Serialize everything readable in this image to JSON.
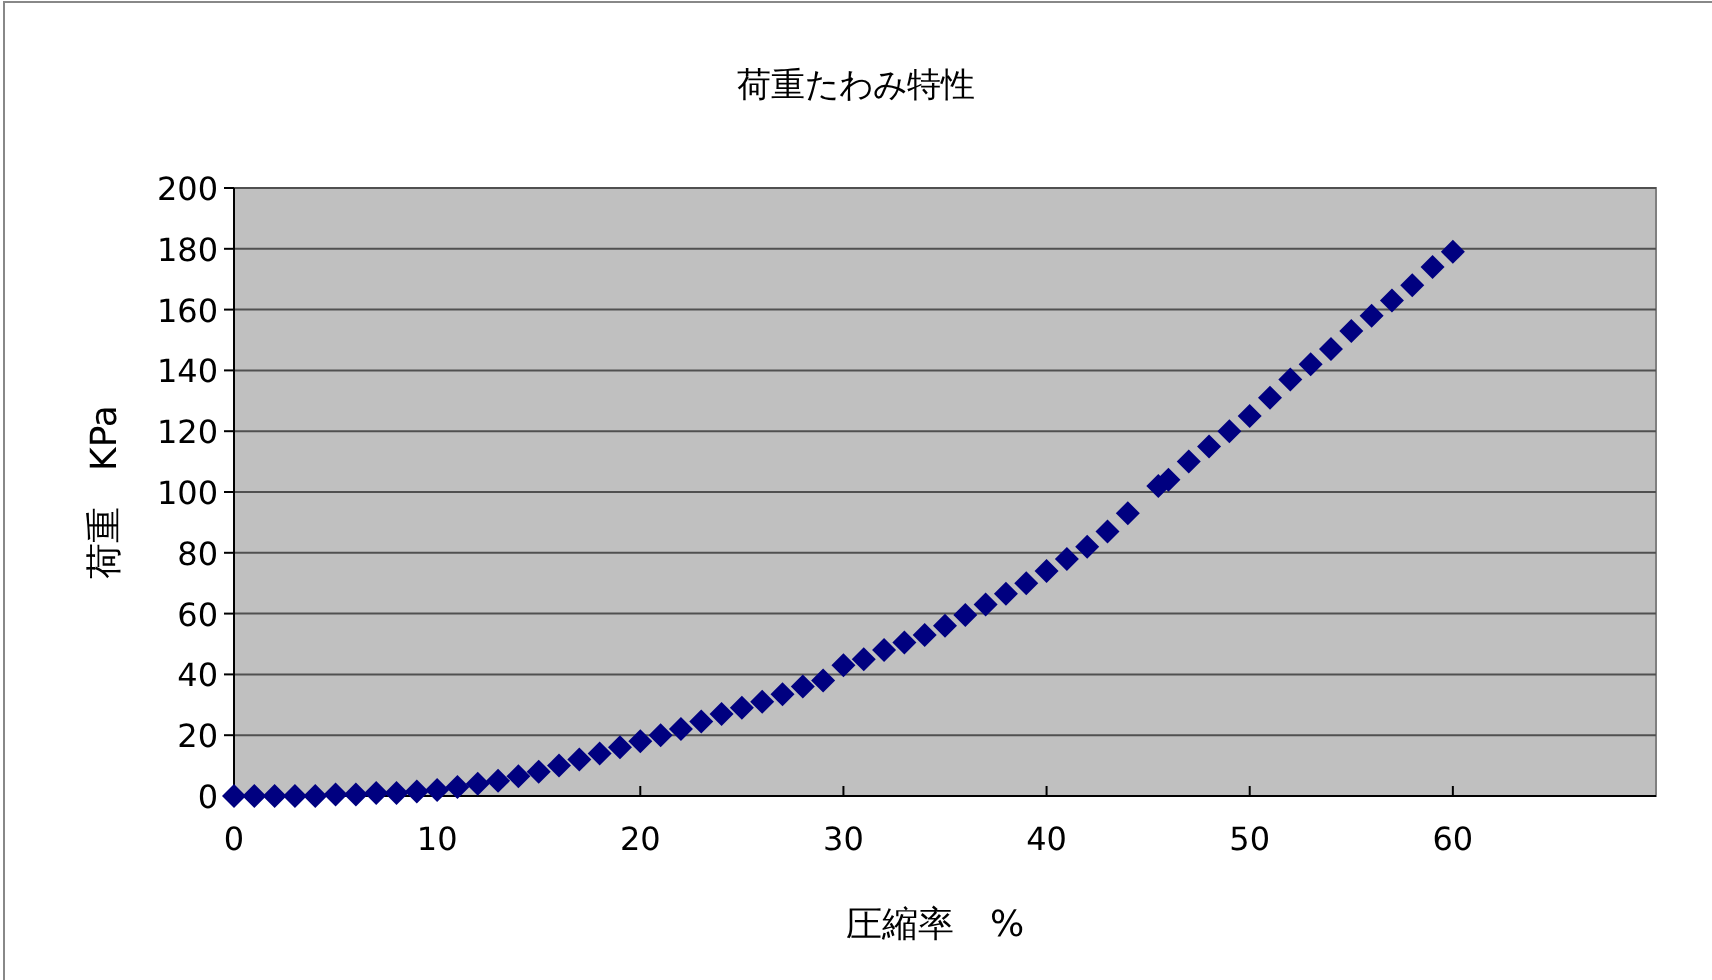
{
  "chart_data": {
    "type": "scatter",
    "title": "荷重たわみ特性",
    "xlabel": "圧縮率　%",
    "ylabel": "荷重　KPa",
    "xlim": [
      0,
      70
    ],
    "xticks": [
      0,
      10,
      20,
      30,
      40,
      50,
      60
    ],
    "ylim": [
      0,
      200
    ],
    "yticks": [
      0,
      20,
      40,
      60,
      80,
      100,
      120,
      140,
      160,
      180,
      200
    ],
    "grid": "y",
    "marker": "diamond",
    "x": [
      0,
      1,
      2,
      3,
      4,
      5,
      6,
      7,
      8,
      9,
      10,
      11,
      12,
      13,
      14,
      15,
      16,
      17,
      18,
      19,
      20,
      21,
      22,
      23,
      24,
      25,
      26,
      27,
      28,
      29,
      30,
      31,
      32,
      33,
      34,
      35,
      36,
      37,
      38,
      39,
      40,
      41,
      42,
      43,
      44,
      45.5,
      46,
      47,
      48,
      49,
      50,
      51,
      52,
      53,
      54,
      55,
      56,
      57,
      58,
      59,
      60
    ],
    "series": [
      {
        "color": "#000080",
        "values": [
          0,
          0,
          0,
          0,
          0,
          0.5,
          0.5,
          1,
          1,
          1.5,
          2,
          3,
          4,
          5,
          6.5,
          8,
          10,
          12,
          14,
          16,
          18,
          20,
          22,
          24.5,
          27,
          29,
          31,
          33.5,
          36,
          38,
          43,
          45,
          48,
          50.5,
          53,
          56,
          59.5,
          63,
          66.5,
          70,
          74,
          78,
          82,
          87,
          93,
          102,
          104,
          110,
          115,
          120,
          125,
          131,
          137,
          142,
          147,
          153,
          158,
          163,
          168,
          174,
          179
        ]
      }
    ]
  }
}
